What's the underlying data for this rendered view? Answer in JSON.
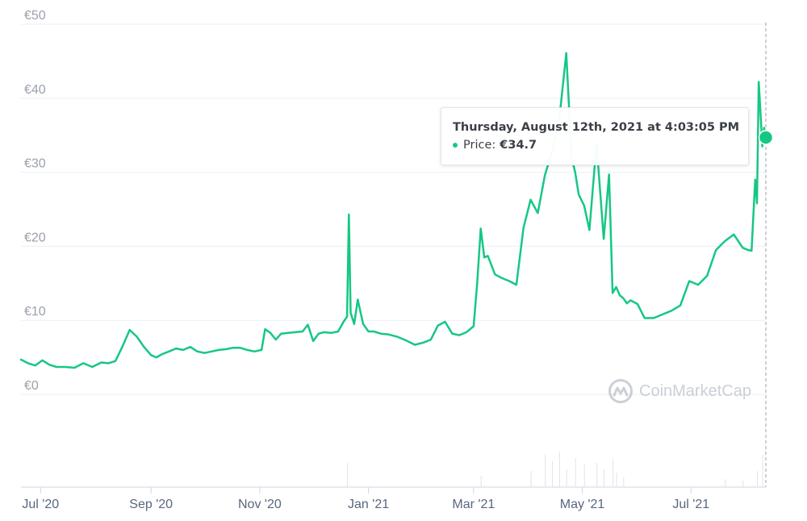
{
  "chart_data": {
    "type": "line",
    "title": "",
    "ylabel": "",
    "xlabel": "",
    "ylim": [
      0,
      50
    ],
    "y_ticks": [
      "€0",
      "€10",
      "€20",
      "€30",
      "€40",
      "€50"
    ],
    "x_ticks": [
      "Jul '20",
      "Sep '20",
      "Nov '20",
      "Jan '21",
      "Mar '21",
      "May '21",
      "Jul '21"
    ],
    "grid": true,
    "line_color": "#16c784",
    "series": [
      {
        "x": [
          "2020-06-20",
          "2020-06-24",
          "2020-06-28",
          "2020-07-02",
          "2020-07-06",
          "2020-07-10",
          "2020-07-15",
          "2020-07-20",
          "2020-07-25",
          "2020-07-30",
          "2020-08-04",
          "2020-08-08",
          "2020-08-12",
          "2020-08-16",
          "2020-08-20",
          "2020-08-24",
          "2020-08-28",
          "2020-09-01",
          "2020-09-04",
          "2020-09-07",
          "2020-09-11",
          "2020-09-15",
          "2020-09-19",
          "2020-09-23",
          "2020-09-27",
          "2020-10-01",
          "2020-10-05",
          "2020-10-09",
          "2020-10-13",
          "2020-10-17",
          "2020-10-21",
          "2020-10-25",
          "2020-10-29",
          "2020-11-02",
          "2020-11-04",
          "2020-11-07",
          "2020-11-10",
          "2020-11-13",
          "2020-11-17",
          "2020-11-21",
          "2020-11-25",
          "2020-11-28",
          "2020-12-01",
          "2020-12-04",
          "2020-12-07",
          "2020-12-11",
          "2020-12-15",
          "2020-12-18",
          "2020-12-20",
          "2020-12-21",
          "2020-12-22",
          "2020-12-24",
          "2020-12-26",
          "2020-12-29",
          "2021-01-01",
          "2021-01-04",
          "2021-01-08",
          "2021-01-12",
          "2021-01-17",
          "2021-01-22",
          "2021-01-27",
          "2021-02-01",
          "2021-02-05",
          "2021-02-09",
          "2021-02-13",
          "2021-02-17",
          "2021-02-21",
          "2021-02-25",
          "2021-03-01",
          "2021-03-03",
          "2021-03-05",
          "2021-03-07",
          "2021-03-09",
          "2021-03-13",
          "2021-03-17",
          "2021-03-21",
          "2021-03-25",
          "2021-03-29",
          "2021-04-02",
          "2021-04-06",
          "2021-04-10",
          "2021-04-14",
          "2021-04-18",
          "2021-04-22",
          "2021-04-25",
          "2021-04-27",
          "2021-04-29",
          "2021-05-02",
          "2021-05-05",
          "2021-05-09",
          "2021-05-13",
          "2021-05-16",
          "2021-05-18",
          "2021-05-20",
          "2021-05-22",
          "2021-05-24",
          "2021-05-26",
          "2021-05-28",
          "2021-06-01",
          "2021-06-05",
          "2021-06-10",
          "2021-06-15",
          "2021-06-20",
          "2021-06-25",
          "2021-06-30",
          "2021-07-05",
          "2021-07-10",
          "2021-07-15",
          "2021-07-20",
          "2021-07-25",
          "2021-07-30",
          "2021-08-02",
          "2021-08-04",
          "2021-08-06",
          "2021-08-07",
          "2021-08-08",
          "2021-08-09",
          "2021-08-10",
          "2021-08-11",
          "2021-08-12"
        ],
        "values": [
          4.7,
          4.2,
          3.9,
          4.6,
          4.0,
          3.7,
          3.7,
          3.6,
          4.2,
          3.7,
          4.3,
          4.2,
          4.5,
          6.5,
          8.7,
          7.8,
          6.4,
          5.3,
          5.0,
          5.4,
          5.8,
          6.2,
          6.0,
          6.4,
          5.8,
          5.6,
          5.8,
          6.0,
          6.1,
          6.3,
          6.3,
          6.0,
          5.8,
          6.0,
          8.8,
          8.3,
          7.4,
          8.2,
          8.3,
          8.4,
          8.5,
          9.4,
          7.2,
          8.2,
          8.4,
          8.3,
          8.5,
          9.8,
          10.5,
          24.3,
          11.0,
          9.5,
          12.8,
          9.5,
          8.5,
          8.5,
          8.2,
          8.1,
          7.8,
          7.3,
          6.7,
          7.0,
          7.4,
          9.3,
          9.8,
          8.2,
          8.0,
          8.4,
          9.2,
          15.0,
          22.4,
          18.5,
          18.7,
          16.2,
          15.7,
          15.3,
          14.8,
          22.5,
          26.3,
          24.5,
          29.6,
          32.8,
          37.0,
          46.1,
          32.0,
          30.0,
          27.0,
          25.5,
          22.2,
          33.9,
          21.0,
          29.7,
          13.7,
          14.5,
          13.4,
          13.0,
          12.3,
          12.7,
          12.2,
          10.3,
          10.3,
          10.8,
          11.3,
          12.0,
          15.3,
          14.8,
          16.0,
          19.5,
          20.7,
          21.6,
          19.8,
          19.5,
          19.4,
          29.0,
          25.8,
          42.2,
          38.0,
          33.5,
          36.0,
          34.7
        ]
      }
    ],
    "tooltip": {
      "date": "Thursday, August 12th, 2021 at 4:03:05 PM",
      "label": "Price:",
      "value": "€34.7"
    },
    "watermark": "CoinMarketCap"
  }
}
